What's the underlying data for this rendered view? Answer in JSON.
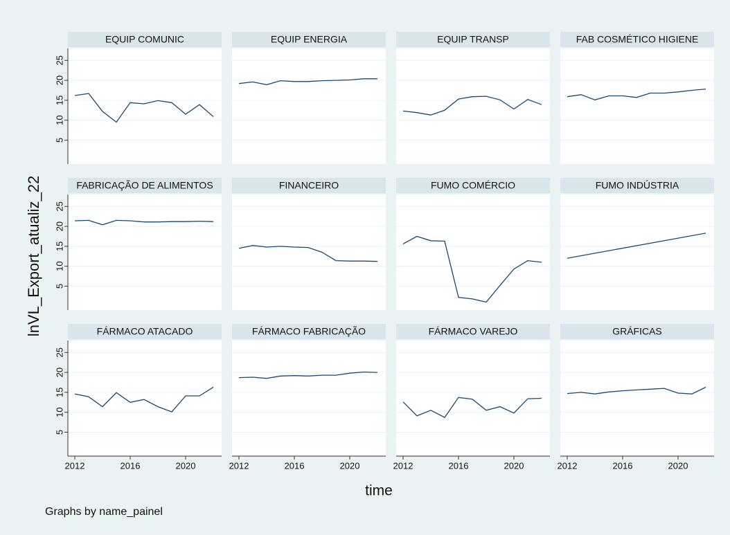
{
  "shared": {
    "y_label": "lnVL_Export_atualiz_22",
    "x_label": "time",
    "note": "Graphs by name_painel",
    "xlim": [
      2011.5,
      2022.6
    ],
    "xticks": [
      2012,
      2016,
      2020
    ],
    "ylim": [
      -1,
      28
    ],
    "yticks": [
      5,
      10,
      15,
      20,
      25
    ],
    "grid": true,
    "color": "#1a476f"
  },
  "chart_data": [
    {
      "type": "line",
      "title": "EQUIP COMUNIC",
      "x": [
        2012,
        2013,
        2014,
        2015,
        2016,
        2017,
        2018,
        2019,
        2020,
        2021,
        2022
      ],
      "values": [
        16.2,
        16.7,
        12.2,
        9.5,
        14.4,
        14.1,
        14.9,
        14.4,
        11.5,
        13.9,
        10.9
      ]
    },
    {
      "type": "line",
      "title": "EQUIP ENERGIA",
      "x": [
        2012,
        2013,
        2014,
        2015,
        2016,
        2017,
        2018,
        2019,
        2020,
        2021,
        2022
      ],
      "values": [
        19.2,
        19.6,
        18.9,
        19.9,
        19.7,
        19.7,
        19.9,
        20.0,
        20.1,
        20.4,
        20.4
      ]
    },
    {
      "type": "line",
      "title": "EQUIP TRANSP",
      "x": [
        2012,
        2013,
        2014,
        2015,
        2016,
        2017,
        2018,
        2019,
        2020,
        2021,
        2022
      ],
      "values": [
        12.3,
        11.9,
        11.3,
        12.5,
        15.3,
        15.9,
        16.0,
        15.1,
        12.8,
        15.2,
        13.9
      ]
    },
    {
      "type": "line",
      "title": "FAB COSMÉTICO HIGIENE",
      "x": [
        2012,
        2013,
        2014,
        2015,
        2016,
        2017,
        2018,
        2019,
        2020,
        2021,
        2022
      ],
      "values": [
        15.9,
        16.4,
        15.1,
        16.1,
        16.1,
        15.7,
        16.8,
        16.8,
        17.1,
        17.5,
        17.8
      ]
    },
    {
      "type": "line",
      "title": "FABRICAÇÃO DE ALIMENTOS",
      "x": [
        2012,
        2013,
        2014,
        2015,
        2016,
        2017,
        2018,
        2019,
        2020,
        2021,
        2022
      ],
      "values": [
        21.4,
        21.5,
        20.4,
        21.5,
        21.4,
        21.1,
        21.1,
        21.2,
        21.2,
        21.3,
        21.2
      ]
    },
    {
      "type": "line",
      "title": "FINANCEIRO",
      "x": [
        2012,
        2013,
        2014,
        2015,
        2016,
        2017,
        2018,
        2019,
        2020,
        2021,
        2022
      ],
      "values": [
        14.5,
        15.2,
        14.8,
        15.0,
        14.8,
        14.7,
        13.5,
        11.4,
        11.3,
        11.3,
        11.2
      ]
    },
    {
      "type": "line",
      "title": "FUMO COMÉRCIO",
      "x": [
        2012,
        2013,
        2014,
        2015,
        2016,
        2017,
        2018,
        2019,
        2020,
        2021,
        2022
      ],
      "values": [
        15.6,
        17.5,
        16.4,
        16.3,
        2.2,
        1.8,
        1.0,
        5.2,
        9.3,
        11.4,
        11.0
      ]
    },
    {
      "type": "line",
      "title": "FUMO INDÚSTRIA",
      "x": [
        2012,
        2022
      ],
      "values": [
        12.0,
        18.3
      ]
    },
    {
      "type": "line",
      "title": "FÁRMACO ATACADO",
      "x": [
        2012,
        2013,
        2014,
        2015,
        2016,
        2017,
        2018,
        2019,
        2020,
        2021,
        2022
      ],
      "values": [
        14.6,
        13.9,
        11.4,
        14.9,
        12.5,
        13.2,
        11.4,
        10.1,
        14.1,
        14.1,
        16.3
      ]
    },
    {
      "type": "line",
      "title": "FÁRMACO FABRICAÇÃO",
      "x": [
        2012,
        2013,
        2014,
        2015,
        2016,
        2017,
        2018,
        2019,
        2020,
        2021,
        2022
      ],
      "values": [
        18.7,
        18.8,
        18.5,
        19.1,
        19.2,
        19.1,
        19.3,
        19.3,
        19.8,
        20.1,
        20.0
      ]
    },
    {
      "type": "line",
      "title": "FÁRMACO VAREJO",
      "x": [
        2012,
        2013,
        2014,
        2015,
        2016,
        2017,
        2018,
        2019,
        2020,
        2021,
        2022
      ],
      "values": [
        12.6,
        9.1,
        10.5,
        8.7,
        13.7,
        13.3,
        10.5,
        11.4,
        9.8,
        13.4,
        13.5
      ]
    },
    {
      "type": "line",
      "title": "GRÁFICAS",
      "x": [
        2012,
        2013,
        2014,
        2015,
        2016,
        2017,
        2018,
        2019,
        2020,
        2021,
        2022
      ],
      "values": [
        14.7,
        15.0,
        14.6,
        15.1,
        15.4,
        15.6,
        15.8,
        16.0,
        14.8,
        14.6,
        16.3
      ]
    }
  ]
}
